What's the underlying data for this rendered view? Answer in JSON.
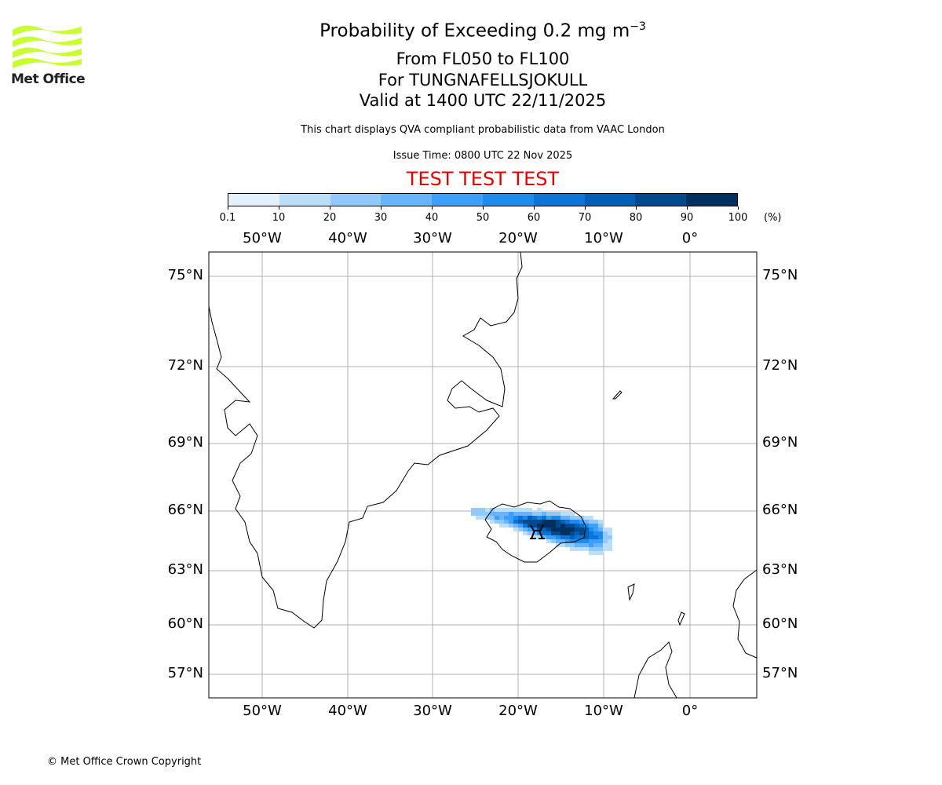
{
  "logo": {
    "text": "Met Office",
    "color": "#c8ff33"
  },
  "header": {
    "title": "Probability of Exceeding 0.2 mg m",
    "title_exp": "−3",
    "levels": "From FL050 to FL100",
    "volcano": "For TUNGNAFELLSJOKULL",
    "valid": "Valid at 1400 UTC 22/11/2025",
    "disclaimer": "This chart displays QVA compliant probabilistic data from VAAC London",
    "issue": "Issue Time: 0800 UTC 22 Nov 2025",
    "test_banner": "TEST TEST TEST"
  },
  "colorbar": {
    "ticks": [
      "0.1",
      "10",
      "20",
      "30",
      "40",
      "50",
      "60",
      "70",
      "80",
      "90",
      "100"
    ],
    "unit": "(%)",
    "colors": [
      "#e3f1fd",
      "#bbdffb",
      "#92c9fb",
      "#68b3fc",
      "#3b9ffc",
      "#1d8cef",
      "#0b74d8",
      "#0060b8",
      "#004a8c",
      "#00305e"
    ]
  },
  "map": {
    "lon_labels": [
      "50°W",
      "40°W",
      "30°W",
      "20°W",
      "10°W",
      "0°"
    ],
    "lat_labels": [
      "75°N",
      "72°N",
      "69°N",
      "66°N",
      "63°N",
      "60°N",
      "57°N"
    ],
    "grid_color": "#b0b0b0",
    "volcano_marker": "volcano-icon"
  },
  "footer": {
    "copyright": "© Met Office Crown Copyright"
  }
}
